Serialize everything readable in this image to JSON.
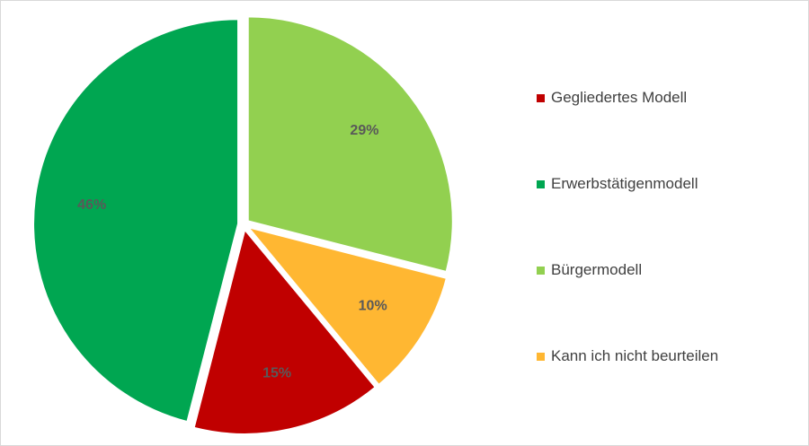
{
  "chart_data": {
    "type": "pie",
    "title": "",
    "slices": [
      {
        "name": "Gegliedertes Modell",
        "value": 15,
        "label": "15%",
        "color": "#c00000"
      },
      {
        "name": "Erwerbstätigenmodell",
        "value": 46,
        "label": "46%",
        "color": "#00a651"
      },
      {
        "name": "Bürgermodell",
        "value": 29,
        "label": "29%",
        "color": "#92d050"
      },
      {
        "name": "Kann ich nicht beurteilen",
        "value": 10,
        "label": "10%",
        "color": "#ffb732"
      }
    ],
    "draw_order": [
      "Bürgermodell",
      "Kann ich nicht beurteilen",
      "Gegliedertes Modell",
      "Erwerbstätigenmodell"
    ],
    "legend_position": "right",
    "exploded": true
  }
}
